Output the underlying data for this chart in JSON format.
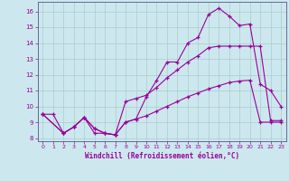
{
  "xlabel": "Windchill (Refroidissement éolien,°C)",
  "background_color": "#cce8ee",
  "grid_color": "#aacccc",
  "line_color": "#990099",
  "spine_color": "#666699",
  "xlim": [
    -0.5,
    23.5
  ],
  "ylim": [
    7.8,
    16.6
  ],
  "yticks": [
    8,
    9,
    10,
    11,
    12,
    13,
    14,
    15,
    16
  ],
  "xticks": [
    0,
    1,
    2,
    3,
    4,
    5,
    6,
    7,
    8,
    9,
    10,
    11,
    12,
    13,
    14,
    15,
    16,
    17,
    18,
    19,
    20,
    21,
    22,
    23
  ],
  "line1_x": [
    0,
    1,
    2,
    3,
    4,
    5,
    6,
    7,
    8,
    9,
    10,
    11,
    12,
    13,
    14,
    15,
    16,
    17,
    18,
    19,
    20,
    21,
    22,
    23
  ],
  "line1_y": [
    9.5,
    9.5,
    8.3,
    8.7,
    9.3,
    8.3,
    8.3,
    8.2,
    9.0,
    9.2,
    10.6,
    11.65,
    12.8,
    12.8,
    14.0,
    14.35,
    15.8,
    16.2,
    15.7,
    15.1,
    15.2,
    11.4,
    11.0,
    10.0
  ],
  "line2_x": [
    0,
    2,
    3,
    4,
    5,
    6,
    7,
    8,
    9,
    10,
    11,
    12,
    13,
    14,
    15,
    16,
    17,
    18,
    19,
    20,
    21,
    22,
    23
  ],
  "line2_y": [
    9.5,
    8.3,
    8.7,
    9.3,
    8.6,
    8.3,
    8.2,
    10.3,
    10.5,
    10.7,
    11.2,
    11.8,
    12.3,
    12.8,
    13.2,
    13.7,
    13.8,
    13.8,
    13.8,
    13.8,
    13.8,
    9.1,
    9.1
  ],
  "line3_x": [
    0,
    2,
    3,
    4,
    5,
    6,
    7,
    8,
    9,
    10,
    11,
    12,
    13,
    14,
    15,
    16,
    17,
    18,
    19,
    20,
    21,
    22,
    23
  ],
  "line3_y": [
    9.5,
    8.3,
    8.7,
    9.3,
    8.6,
    8.3,
    8.2,
    9.0,
    9.2,
    9.4,
    9.7,
    10.0,
    10.3,
    10.6,
    10.85,
    11.1,
    11.3,
    11.5,
    11.6,
    11.65,
    9.0,
    9.0,
    9.0
  ]
}
